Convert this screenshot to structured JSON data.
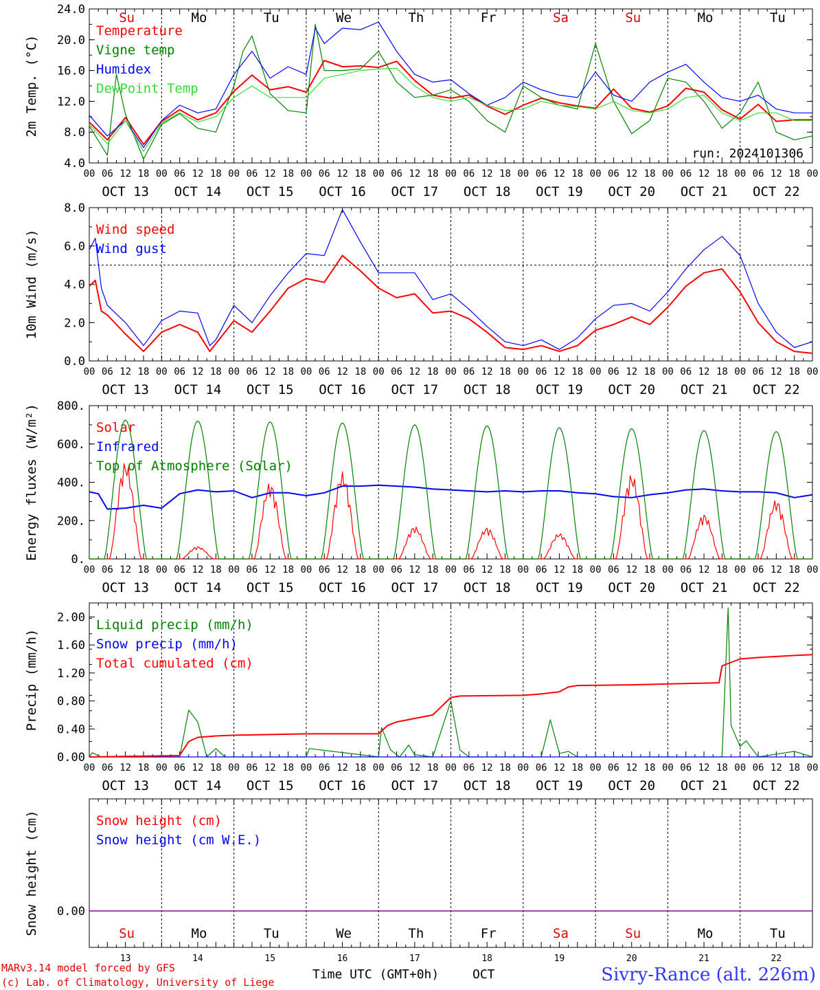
{
  "days": {
    "top_labels": [
      "Su",
      "Mo",
      "Tu",
      "We",
      "Th",
      "Fr",
      "Sa",
      "Su",
      "Mo",
      "Tu"
    ],
    "top_label_colors": [
      "#e00000",
      "#000000",
      "#000000",
      "#000000",
      "#000000",
      "#000000",
      "#e00000",
      "#e00000",
      "#000000",
      "#000000"
    ],
    "date_labels": [
      "OCT 13",
      "OCT 14",
      "OCT 15",
      "OCT 16",
      "OCT 17",
      "OCT 18",
      "OCT 19",
      "OCT 20",
      "OCT 21",
      "OCT 22"
    ],
    "hour_ticks": [
      "00",
      "06",
      "12",
      "18"
    ],
    "hour_tick_end": "00",
    "bottom_day_numbers": [
      "13",
      "14",
      "15",
      "16",
      "17",
      "18",
      "19",
      "20",
      "21",
      "22"
    ]
  },
  "footer": {
    "credit_line1": "MARv3.14 model forced by GFS",
    "credit_line2": "(c) Lab. of Climatology, University of Liege",
    "time_axis_label": "Time UTC (GMT+0h)",
    "month_label": "OCT",
    "station": "Sivry-Rance (alt. 226m)"
  },
  "colors": {
    "red": "#ff0000",
    "green": "#008000",
    "blue": "#0000ff",
    "lightgreen": "#33dd33",
    "purple": "#800080"
  },
  "chart_data": [
    {
      "type": "line",
      "ylabel": "2m Temp. (°C)",
      "ylim": [
        4,
        24
      ],
      "yticks": [
        "4.0",
        "8.0",
        "12.0",
        "16.0",
        "20.0",
        "24.0"
      ],
      "annotation": "run: 2024101306",
      "x_unit": "hours since OCT 13 00 UTC",
      "series": [
        {
          "name": "Temperature",
          "color": "#ff0000",
          "x": [
            0,
            6,
            12,
            18,
            24,
            30,
            36,
            42,
            48,
            54,
            60,
            66,
            72,
            78,
            84,
            90,
            96,
            102,
            108,
            114,
            120,
            126,
            132,
            138,
            144,
            150,
            156,
            162,
            168,
            174,
            180,
            186,
            192,
            198,
            204,
            210,
            216,
            222,
            228,
            234,
            240
          ],
          "y": [
            9.3,
            7.0,
            9.9,
            6.4,
            9.4,
            10.9,
            9.6,
            10.5,
            13.3,
            15.4,
            13.5,
            13.9,
            13.2,
            17.3,
            16.5,
            16.6,
            16.4,
            17.2,
            14.7,
            12.8,
            12.4,
            12.8,
            11.4,
            10.3,
            11.5,
            12.4,
            11.8,
            11.4,
            11.1,
            13.6,
            11.1,
            10.6,
            11.4,
            13.7,
            13.2,
            10.9,
            9.7,
            11.6,
            9.4,
            9.6,
            9.6
          ]
        },
        {
          "name": "Vigne temp",
          "color": "#008000",
          "x": [
            0,
            6,
            9,
            12,
            18,
            24,
            30,
            36,
            42,
            48,
            51,
            54,
            60,
            66,
            72,
            75,
            78,
            84,
            90,
            96,
            102,
            108,
            114,
            120,
            126,
            132,
            138,
            144,
            150,
            156,
            162,
            168,
            174,
            180,
            186,
            192,
            198,
            204,
            210,
            216,
            222,
            228,
            234,
            240
          ],
          "y": [
            8.8,
            5.0,
            15.5,
            10.3,
            4.5,
            9.0,
            10.4,
            8.5,
            8.0,
            14.0,
            18.5,
            20.5,
            13.0,
            10.8,
            10.5,
            22.0,
            16.0,
            16.0,
            16.2,
            18.5,
            14.5,
            12.5,
            12.8,
            13.5,
            12.0,
            9.5,
            8.0,
            14.0,
            12.5,
            11.5,
            11.0,
            19.5,
            12.0,
            7.8,
            9.5,
            15.0,
            14.5,
            12.0,
            8.5,
            10.5,
            14.5,
            8.0,
            7.0,
            7.5
          ]
        },
        {
          "name": "Humidex",
          "color": "#0000ff",
          "x": [
            0,
            6,
            12,
            18,
            24,
            30,
            36,
            42,
            48,
            54,
            60,
            66,
            72,
            75,
            78,
            84,
            90,
            96,
            102,
            108,
            114,
            120,
            126,
            132,
            138,
            144,
            150,
            156,
            162,
            168,
            174,
            180,
            186,
            192,
            198,
            204,
            210,
            216,
            222,
            228,
            234,
            240
          ],
          "y": [
            10.2,
            7.5,
            9.5,
            6.0,
            9.5,
            11.5,
            10.5,
            11.0,
            15.5,
            18.5,
            15.0,
            16.5,
            15.5,
            21.5,
            19.5,
            21.5,
            21.3,
            22.3,
            18.5,
            15.5,
            14.5,
            14.8,
            13.0,
            11.5,
            12.5,
            14.5,
            13.5,
            12.8,
            12.5,
            15.8,
            12.8,
            12.0,
            14.5,
            15.8,
            16.8,
            14.5,
            12.5,
            12.0,
            12.8,
            11.0,
            10.5,
            10.5
          ]
        },
        {
          "name": "DewPoint Temp",
          "color": "#33dd33",
          "x": [
            0,
            6,
            12,
            18,
            24,
            30,
            36,
            42,
            48,
            54,
            60,
            66,
            72,
            78,
            84,
            90,
            96,
            102,
            108,
            114,
            120,
            126,
            132,
            138,
            144,
            150,
            156,
            162,
            168,
            174,
            180,
            186,
            192,
            198,
            204,
            210,
            216,
            222,
            228,
            234,
            240
          ],
          "y": [
            9.0,
            6.5,
            9.5,
            5.5,
            9.2,
            10.5,
            9.3,
            10.0,
            12.5,
            14.0,
            12.5,
            12.5,
            12.5,
            15.0,
            15.5,
            16.0,
            16.2,
            16.3,
            14.0,
            12.5,
            12.0,
            12.5,
            11.5,
            10.8,
            11.0,
            12.0,
            11.5,
            11.3,
            11.0,
            12.0,
            10.8,
            10.5,
            11.0,
            12.5,
            12.8,
            10.5,
            9.5,
            10.5,
            10.5,
            9.5,
            9.5
          ]
        }
      ]
    },
    {
      "type": "line",
      "ylabel": "10m Wind (m/s)",
      "ylim": [
        0,
        8
      ],
      "yticks": [
        "0.0",
        "2.0",
        "4.0",
        "6.0",
        "8.0"
      ],
      "reference_line": 5.0,
      "x_unit": "hours since OCT 13 00 UTC",
      "series": [
        {
          "name": "Wind speed",
          "color": "#ff0000",
          "x": [
            0,
            2,
            4,
            6,
            12,
            18,
            24,
            30,
            36,
            40,
            42,
            48,
            54,
            60,
            66,
            72,
            78,
            84,
            90,
            96,
            102,
            108,
            114,
            120,
            126,
            132,
            138,
            144,
            150,
            156,
            162,
            168,
            174,
            180,
            186,
            192,
            198,
            204,
            210,
            216,
            222,
            228,
            234,
            240
          ],
          "y": [
            3.9,
            4.2,
            2.6,
            2.4,
            1.4,
            0.5,
            1.5,
            1.9,
            1.5,
            0.5,
            0.9,
            2.1,
            1.5,
            2.6,
            3.8,
            4.3,
            4.1,
            5.5,
            4.7,
            3.8,
            3.3,
            3.5,
            2.5,
            2.6,
            2.2,
            1.5,
            0.7,
            0.6,
            0.8,
            0.5,
            0.8,
            1.6,
            1.9,
            2.3,
            1.9,
            2.8,
            3.9,
            4.6,
            4.8,
            3.6,
            2.0,
            1.0,
            0.5,
            0.4
          ]
        },
        {
          "name": "Wind gust",
          "color": "#0000ff",
          "x": [
            0,
            2,
            4,
            6,
            12,
            18,
            24,
            30,
            36,
            40,
            42,
            48,
            54,
            60,
            66,
            72,
            78,
            84,
            90,
            96,
            102,
            108,
            114,
            120,
            126,
            132,
            138,
            144,
            150,
            156,
            162,
            168,
            174,
            180,
            186,
            192,
            198,
            204,
            210,
            216,
            222,
            228,
            234,
            240
          ],
          "y": [
            5.8,
            6.4,
            3.8,
            2.9,
            2.0,
            0.8,
            2.1,
            2.6,
            2.5,
            0.8,
            1.1,
            2.9,
            2.0,
            3.4,
            4.6,
            5.6,
            5.5,
            7.9,
            6.2,
            4.6,
            4.6,
            4.6,
            3.2,
            3.5,
            2.7,
            1.8,
            1.0,
            0.8,
            1.1,
            0.6,
            1.2,
            2.2,
            2.9,
            3.0,
            2.6,
            3.6,
            4.8,
            5.8,
            6.5,
            5.5,
            3.0,
            1.5,
            0.7,
            1.0
          ]
        }
      ]
    },
    {
      "type": "line",
      "ylabel": "Energy fluxes (W/m²)",
      "ylim": [
        0,
        800
      ],
      "yticks": [
        "0.",
        "200.",
        "400.",
        "600.",
        "800."
      ],
      "x_unit": "hours since OCT 13 00 UTC",
      "series": [
        {
          "name": "Solar",
          "color": "#ff0000",
          "peaks": [
            {
              "day": 0,
              "value": 510
            },
            {
              "day": 1,
              "value": 65
            },
            {
              "day": 2,
              "value": 400
            },
            {
              "day": 3,
              "value": 455
            },
            {
              "day": 4,
              "value": 170
            },
            {
              "day": 5,
              "value": 165
            },
            {
              "day": 6,
              "value": 135
            },
            {
              "day": 7,
              "value": 445
            },
            {
              "day": 8,
              "value": 235
            },
            {
              "day": 9,
              "value": 310
            }
          ]
        },
        {
          "name": "Infrared",
          "color": "#0000ff",
          "x": [
            0,
            3,
            6,
            12,
            18,
            24,
            30,
            36,
            42,
            48,
            54,
            60,
            66,
            72,
            78,
            84,
            90,
            96,
            102,
            108,
            114,
            120,
            126,
            132,
            138,
            144,
            150,
            156,
            162,
            168,
            174,
            180,
            186,
            192,
            198,
            204,
            210,
            216,
            222,
            228,
            234,
            240
          ],
          "y": [
            350,
            340,
            260,
            265,
            280,
            265,
            340,
            360,
            350,
            355,
            320,
            345,
            345,
            330,
            345,
            380,
            380,
            385,
            380,
            375,
            365,
            360,
            355,
            350,
            355,
            350,
            355,
            355,
            345,
            340,
            325,
            320,
            335,
            345,
            360,
            365,
            355,
            350,
            350,
            345,
            320,
            335
          ]
        },
        {
          "name": "Top of Atmosphere (Solar)",
          "color": "#008000",
          "peaks": [
            {
              "day": 0,
              "value": 725
            },
            {
              "day": 1,
              "value": 720
            },
            {
              "day": 2,
              "value": 715
            },
            {
              "day": 3,
              "value": 710
            },
            {
              "day": 4,
              "value": 700
            },
            {
              "day": 5,
              "value": 695
            },
            {
              "day": 6,
              "value": 685
            },
            {
              "day": 7,
              "value": 680
            },
            {
              "day": 8,
              "value": 670
            },
            {
              "day": 9,
              "value": 665
            }
          ]
        }
      ]
    },
    {
      "type": "line",
      "ylabel": "Precip (mm/h)",
      "ylim": [
        0,
        2.2
      ],
      "yticks": [
        "0.00",
        "0.40",
        "0.80",
        "1.20",
        "1.60",
        "2.00"
      ],
      "x_unit": "hours since OCT 13 00 UTC",
      "series": [
        {
          "name": "Liquid precip (mm/h)",
          "color": "#008000",
          "x": [
            0,
            1,
            4,
            30,
            33,
            36,
            39,
            42,
            45,
            48,
            72,
            73,
            96,
            97,
            100,
            103,
            106,
            108,
            114,
            117,
            120,
            123,
            126,
            144,
            150,
            153,
            156,
            159,
            162,
            210,
            212,
            213,
            216,
            218,
            222,
            234,
            240
          ],
          "y": [
            0,
            0.06,
            0,
            0,
            0.67,
            0.5,
            0,
            0.12,
            0,
            0,
            0,
            0.12,
            0,
            0.42,
            0.1,
            0,
            0.17,
            0.03,
            0,
            0.4,
            0.8,
            0.1,
            0,
            0,
            0,
            0.53,
            0.05,
            0.08,
            0,
            0,
            2.13,
            0.45,
            0.15,
            0.23,
            0,
            0.08,
            0
          ]
        },
        {
          "name": "Snow precip (mm/h)",
          "color": "#0000ff",
          "x": [
            0,
            240
          ],
          "y": [
            0,
            0
          ]
        },
        {
          "name": "Total cumulated (cm)",
          "color": "#ff0000",
          "x": [
            0,
            30,
            33,
            36,
            42,
            48,
            72,
            96,
            99,
            102,
            114,
            120,
            123,
            144,
            150,
            156,
            159,
            162,
            180,
            209,
            210,
            213,
            216,
            222,
            234,
            240
          ],
          "y": [
            0,
            0.02,
            0.22,
            0.28,
            0.3,
            0.31,
            0.33,
            0.33,
            0.45,
            0.5,
            0.6,
            0.85,
            0.87,
            0.88,
            0.9,
            0.93,
            1.0,
            1.02,
            1.03,
            1.06,
            1.3,
            1.35,
            1.4,
            1.42,
            1.45,
            1.46
          ]
        }
      ]
    },
    {
      "type": "line",
      "ylabel": "Snow height (cm)",
      "yticks": [
        "0.00"
      ],
      "x_unit": "hours since OCT 13 00 UTC",
      "series": [
        {
          "name": "Snow height (cm)",
          "color": "#ff0000",
          "x": [
            0,
            240
          ],
          "y": [
            0,
            0
          ]
        },
        {
          "name": "Snow height (cm W.E.)",
          "color": "#0000ff",
          "x": [
            0,
            240
          ],
          "y": [
            0,
            0
          ]
        }
      ]
    }
  ]
}
